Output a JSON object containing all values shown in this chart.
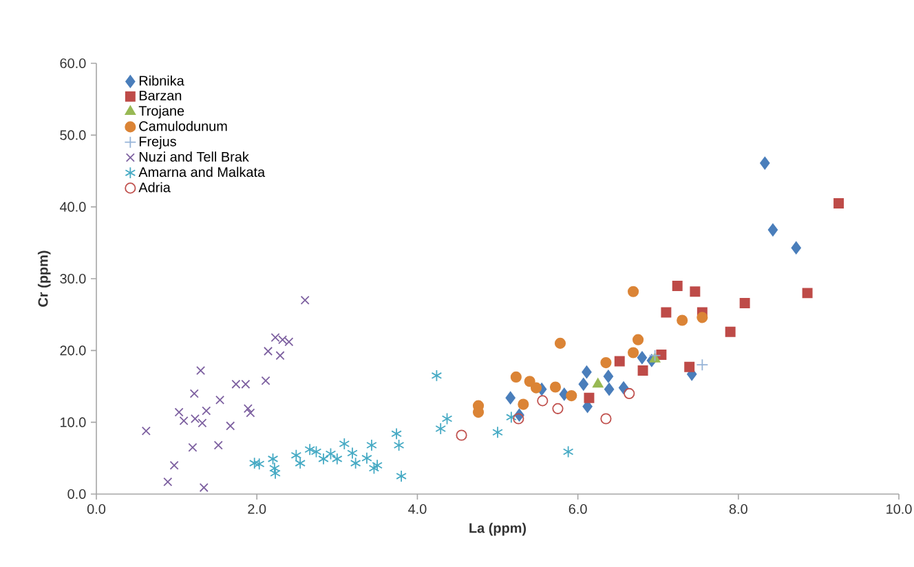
{
  "chart_data": {
    "type": "scatter",
    "xlabel": "La  (ppm)",
    "ylabel": "Cr (ppm)",
    "legend": "top left",
    "xlim": [
      0,
      10
    ],
    "ylim": [
      0,
      60
    ],
    "xticks": [
      {
        "value": 0,
        "label": "0.0"
      },
      {
        "value": 2,
        "label": "2.0"
      },
      {
        "value": 4,
        "label": "4.0"
      },
      {
        "value": 6,
        "label": "6.0"
      },
      {
        "value": 8,
        "label": "8.0"
      },
      {
        "value": 10,
        "label": "10.0"
      }
    ],
    "yticks": [
      {
        "value": 0,
        "label": "0.0"
      },
      {
        "value": 10,
        "label": "10.0"
      },
      {
        "value": 20,
        "label": "20.0"
      },
      {
        "value": 30,
        "label": "30.0"
      },
      {
        "value": 40,
        "label": "40.0"
      },
      {
        "value": 50,
        "label": "50.0"
      },
      {
        "value": 60,
        "label": "60.0"
      }
    ],
    "series": [
      {
        "name": "Ribnika",
        "color": "#4a7ebb",
        "marker": "diamond",
        "x": [
          5.16,
          5.27,
          5.55,
          5.83,
          6.11,
          6.07,
          6.12,
          6.38,
          6.39,
          6.57,
          6.92,
          6.8,
          7.42,
          8.33,
          8.43,
          8.72
        ],
        "values": [
          13.4,
          11.0,
          14.6,
          13.9,
          17.0,
          15.3,
          12.2,
          16.4,
          14.6,
          14.8,
          18.6,
          19.0,
          16.7,
          46.1,
          36.8,
          34.3
        ]
      },
      {
        "name": "Barzan",
        "color": "#be4b48",
        "marker": "square",
        "x": [
          6.14,
          6.52,
          6.81,
          7.24,
          7.46,
          7.1,
          7.55,
          8.08,
          7.9,
          8.86,
          7.04,
          7.39,
          9.25
        ],
        "values": [
          13.4,
          18.5,
          17.2,
          29.0,
          28.2,
          25.3,
          25.3,
          26.6,
          22.6,
          28.0,
          19.4,
          17.7,
          40.5
        ]
      },
      {
        "name": "Trojane",
        "color": "#98b954",
        "marker": "triangle",
        "x": [
          6.25,
          6.96
        ],
        "values": [
          15.3,
          18.8
        ]
      },
      {
        "name": "Camulodunum",
        "color": "#db8436",
        "marker": "circle",
        "x": [
          4.76,
          4.76,
          5.23,
          5.32,
          5.4,
          5.48,
          5.78,
          5.72,
          5.92,
          6.35,
          6.69,
          6.75,
          6.69,
          7.3,
          7.55
        ],
        "values": [
          12.3,
          11.4,
          16.3,
          12.5,
          15.7,
          14.8,
          21.0,
          14.9,
          13.7,
          18.3,
          19.7,
          21.5,
          28.2,
          24.2,
          24.6
        ]
      },
      {
        "name": "Frejus",
        "color": "#95b3d7",
        "marker": "plus",
        "x": [
          6.96,
          7.55
        ],
        "values": [
          19.3,
          18.0
        ]
      },
      {
        "name": "Nuzi and Tell Brak",
        "color": "#7d60a0",
        "marker": "cross",
        "x": [
          2.6,
          2.23,
          2.32,
          2.4,
          2.14,
          2.29,
          1.3,
          1.74,
          1.86,
          2.11,
          1.22,
          1.54,
          1.03,
          1.37,
          1.89,
          1.92,
          1.09,
          1.23,
          1.32,
          1.67,
          0.62,
          1.2,
          1.52,
          0.97,
          0.89,
          1.34
        ],
        "values": [
          27.0,
          21.8,
          21.5,
          21.2,
          19.9,
          19.3,
          17.2,
          15.3,
          15.3,
          15.8,
          14.0,
          13.1,
          11.4,
          11.6,
          11.9,
          11.3,
          10.2,
          10.5,
          9.9,
          9.5,
          8.8,
          6.5,
          6.8,
          4.0,
          1.7,
          0.9
        ]
      },
      {
        "name": "Amarna and Malkata",
        "color": "#46aac4",
        "x": [
          1.97,
          2.03,
          2.2,
          2.22,
          2.23,
          2.49,
          2.54,
          2.66,
          2.74,
          2.83,
          2.92,
          3.0,
          3.09,
          3.19,
          3.23,
          3.37,
          3.43,
          3.46,
          3.5,
          3.74,
          3.77,
          3.8,
          4.29,
          4.37,
          4.24,
          5.0,
          5.17,
          5.88
        ],
        "values": [
          4.3,
          4.2,
          4.9,
          3.6,
          2.9,
          5.4,
          4.3,
          6.2,
          5.9,
          4.9,
          5.6,
          4.9,
          7.0,
          5.7,
          4.3,
          5.0,
          6.8,
          3.6,
          4.0,
          8.4,
          6.8,
          2.5,
          9.1,
          10.5,
          16.5,
          8.6,
          10.7,
          5.9
        ]
      },
      {
        "name": "Adria",
        "color": "#c0504d",
        "marker": "circle-open",
        "x": [
          4.55,
          5.26,
          5.56,
          5.75,
          6.35,
          6.64
        ],
        "values": [
          8.2,
          10.5,
          13.0,
          11.9,
          10.5,
          14.0
        ]
      }
    ]
  }
}
